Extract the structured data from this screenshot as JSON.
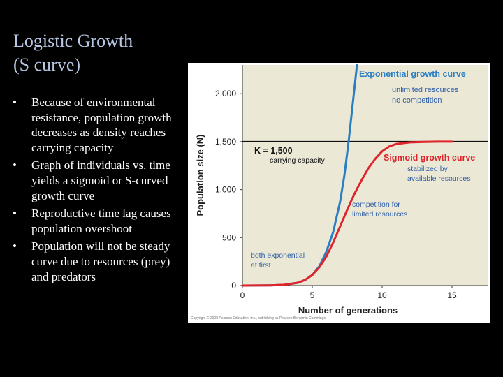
{
  "slide": {
    "title_line1": "Logistic Growth",
    "title_line2": "(S curve)",
    "bullets": [
      "Because of environmental resistance, population growth decreases as density reaches carrying capacity",
      "Graph of individuals vs. time yields a sigmoid or S-curved growth curve",
      "Reproductive time lag causes population overshoot",
      "Population will not be steady curve due to resources (prey) and predators"
    ],
    "bullet_glyph": "•"
  },
  "colors": {
    "background": "#000000",
    "title": "#b7c6e3",
    "bullet_text": "#ffffff",
    "plot_bg": "#ebe8d5",
    "exponential": "#2a7ec3",
    "sigmoid": "#e0242c",
    "carrying_capacity": "#111111",
    "annotation_blue": "#2f5fa7",
    "annotation_white": "#ffffff"
  },
  "chart_data": {
    "type": "line",
    "xlabel": "Number of generations",
    "ylabel": "Population size (N)",
    "xlim": [
      0,
      17.6
    ],
    "ylim": [
      0,
      2300
    ],
    "xticks": [
      "0",
      "5",
      "10",
      "15"
    ],
    "xtick_values": [
      0,
      5,
      10,
      15
    ],
    "yticks": [
      "0",
      "500",
      "1,000",
      "1,500",
      "2,000"
    ],
    "ytick_values": [
      0,
      500,
      1000,
      1500,
      2000
    ],
    "grid": true,
    "series": [
      {
        "name": "Exponential growth curve",
        "color": "#2a7ec3",
        "points": [
          [
            0,
            0
          ],
          [
            2,
            2
          ],
          [
            3,
            8
          ],
          [
            4,
            30
          ],
          [
            4.5,
            60
          ],
          [
            5,
            110
          ],
          [
            5.5,
            200
          ],
          [
            6,
            350
          ],
          [
            6.5,
            560
          ],
          [
            7,
            880
          ],
          [
            7.3,
            1150
          ],
          [
            7.6,
            1500
          ],
          [
            7.9,
            1900
          ],
          [
            8.2,
            2300
          ]
        ]
      },
      {
        "name": "Sigmoid growth curve",
        "color": "#e0242c",
        "points": [
          [
            0,
            0
          ],
          [
            2,
            2
          ],
          [
            3,
            8
          ],
          [
            4,
            30
          ],
          [
            4.5,
            60
          ],
          [
            5,
            110
          ],
          [
            5.5,
            190
          ],
          [
            6,
            300
          ],
          [
            6.5,
            450
          ],
          [
            7,
            620
          ],
          [
            7.5,
            790
          ],
          [
            8,
            950
          ],
          [
            8.5,
            1090
          ],
          [
            9,
            1220
          ],
          [
            9.5,
            1320
          ],
          [
            10,
            1400
          ],
          [
            10.5,
            1450
          ],
          [
            11,
            1475
          ],
          [
            12,
            1493
          ],
          [
            13,
            1498
          ],
          [
            14,
            1500
          ],
          [
            15,
            1500
          ]
        ]
      }
    ],
    "carrying_capacity": {
      "value": 1500,
      "label_main": "K = 1,500",
      "label_sub": "carrying capacity"
    },
    "annotations": {
      "exp_title": "Exponential growth curve",
      "exp_line1": "unlimited resources",
      "exp_line2": "no competition",
      "sig_title": "Sigmoid growth curve",
      "sig_line1": "stabilized by",
      "sig_line2": "available resources",
      "comp_line1": "competition for",
      "comp_line2": "limited resources",
      "both_line1": "both exponential",
      "both_line2": "at first"
    },
    "copyright": "Copyright © 2008 Pearson Education, Inc., publishing as Pearson Benjamin Cummings."
  }
}
